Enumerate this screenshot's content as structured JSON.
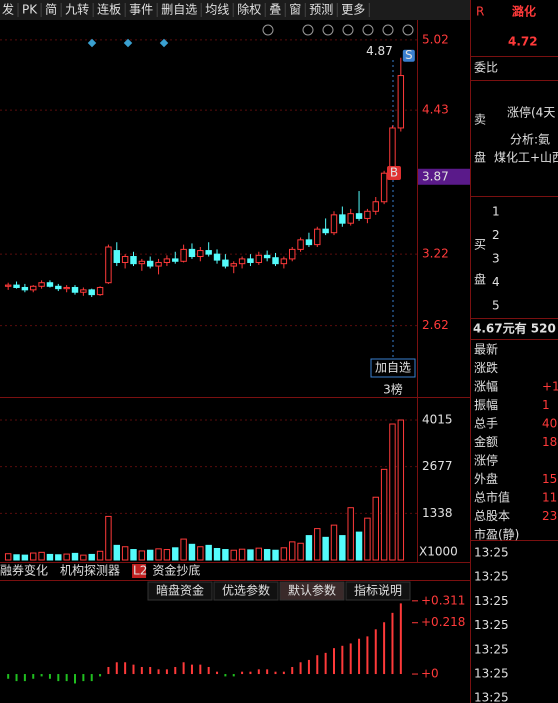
{
  "toolbar": {
    "items": [
      "发",
      "PK",
      "简",
      "九转",
      "连板",
      "事件",
      "删自选",
      "均线",
      "除权",
      "叠",
      "窗",
      "预测",
      "更多"
    ]
  },
  "chart_data": [
    {
      "type": "candlestick",
      "ohlc": [
        [
          2.95,
          2.98,
          2.92,
          2.96
        ],
        [
          2.96,
          2.99,
          2.93,
          2.94
        ],
        [
          2.94,
          2.97,
          2.9,
          2.92
        ],
        [
          2.92,
          2.96,
          2.9,
          2.95
        ],
        [
          2.95,
          3.0,
          2.93,
          2.98
        ],
        [
          2.98,
          3.0,
          2.94,
          2.95
        ],
        [
          2.95,
          2.97,
          2.91,
          2.93
        ],
        [
          2.93,
          2.96,
          2.9,
          2.94
        ],
        [
          2.94,
          2.96,
          2.88,
          2.9
        ],
        [
          2.9,
          2.94,
          2.87,
          2.92
        ],
        [
          2.92,
          2.93,
          2.86,
          2.88
        ],
        [
          2.88,
          2.95,
          2.87,
          2.94
        ],
        [
          2.98,
          3.3,
          2.97,
          3.28
        ],
        [
          3.25,
          3.32,
          3.12,
          3.15
        ],
        [
          3.15,
          3.22,
          3.1,
          3.2
        ],
        [
          3.2,
          3.24,
          3.12,
          3.14
        ],
        [
          3.14,
          3.18,
          3.08,
          3.16
        ],
        [
          3.16,
          3.2,
          3.1,
          3.12
        ],
        [
          3.12,
          3.18,
          3.05,
          3.15
        ],
        [
          3.15,
          3.21,
          3.12,
          3.18
        ],
        [
          3.18,
          3.24,
          3.14,
          3.16
        ],
        [
          3.16,
          3.3,
          3.15,
          3.26
        ],
        [
          3.26,
          3.31,
          3.18,
          3.2
        ],
        [
          3.2,
          3.28,
          3.16,
          3.25
        ],
        [
          3.25,
          3.32,
          3.2,
          3.22
        ],
        [
          3.22,
          3.26,
          3.14,
          3.17
        ],
        [
          3.17,
          3.22,
          3.1,
          3.12
        ],
        [
          3.12,
          3.16,
          3.06,
          3.14
        ],
        [
          3.14,
          3.2,
          3.1,
          3.18
        ],
        [
          3.18,
          3.22,
          3.12,
          3.15
        ],
        [
          3.15,
          3.24,
          3.13,
          3.21
        ],
        [
          3.21,
          3.25,
          3.16,
          3.19
        ],
        [
          3.19,
          3.23,
          3.12,
          3.14
        ],
        [
          3.14,
          3.2,
          3.1,
          3.18
        ],
        [
          3.18,
          3.28,
          3.16,
          3.26
        ],
        [
          3.26,
          3.36,
          3.24,
          3.34
        ],
        [
          3.34,
          3.4,
          3.28,
          3.3
        ],
        [
          3.3,
          3.45,
          3.28,
          3.43
        ],
        [
          3.43,
          3.52,
          3.38,
          3.4
        ],
        [
          3.4,
          3.58,
          3.38,
          3.55
        ],
        [
          3.55,
          3.62,
          3.45,
          3.48
        ],
        [
          3.48,
          3.6,
          3.46,
          3.56
        ],
        [
          3.56,
          3.75,
          3.5,
          3.52
        ],
        [
          3.52,
          3.6,
          3.48,
          3.58
        ],
        [
          3.58,
          3.7,
          3.55,
          3.66
        ],
        [
          3.66,
          3.92,
          3.64,
          3.9
        ],
        [
          3.9,
          4.3,
          3.88,
          4.28
        ],
        [
          4.28,
          4.87,
          4.25,
          4.72
        ]
      ],
      "ylim": [
        2.02,
        5.17
      ],
      "yticks": [
        5.02,
        4.43,
        3.22,
        2.62
      ],
      "cursor_price": 3.87,
      "annotations": {
        "high": "4.87",
        "sell": "S",
        "buy": "B",
        "add": "加自选",
        "rank": "3榜"
      }
    },
    {
      "type": "bar",
      "values": [
        180,
        150,
        140,
        200,
        220,
        160,
        150,
        170,
        190,
        140,
        160,
        250,
        1250,
        420,
        380,
        300,
        260,
        280,
        320,
        300,
        350,
        600,
        450,
        380,
        420,
        330,
        300,
        280,
        310,
        290,
        340,
        300,
        280,
        350,
        520,
        480,
        700,
        900,
        650,
        1000,
        700,
        1500,
        800,
        1200,
        1800,
        2600,
        3900,
        4015
      ],
      "ylim": [
        0,
        4646
      ],
      "yticks": [
        4015,
        2677,
        1338
      ],
      "unit": "X1000"
    },
    {
      "type": "bar",
      "values": [
        -0.02,
        -0.03,
        -0.03,
        -0.02,
        -0.01,
        -0.02,
        -0.03,
        -0.03,
        -0.04,
        -0.03,
        -0.03,
        -0.01,
        0.03,
        0.05,
        0.05,
        0.04,
        0.03,
        0.03,
        0.02,
        0.02,
        0.03,
        0.05,
        0.04,
        0.04,
        0.03,
        0.01,
        -0.01,
        -0.01,
        0.01,
        0.01,
        0.02,
        0.02,
        0.01,
        0.01,
        0.03,
        0.05,
        0.06,
        0.08,
        0.09,
        0.11,
        0.12,
        0.13,
        0.15,
        0.16,
        0.19,
        0.22,
        0.26,
        0.3
      ],
      "ylim": [
        -0.123,
        0.391
      ],
      "yticks": [
        {
          "value": 0.311,
          "label": "+0.311"
        },
        {
          "value": 0.218,
          "label": "+0.218"
        },
        {
          "value": 0,
          "label": "+0"
        }
      ]
    }
  ],
  "tabs": [
    "融券变化",
    "机构探测器",
    "L2",
    "资金抄底"
  ],
  "buttons": [
    "暗盘资金",
    "优选参数",
    "默认参数",
    "指标说明"
  ],
  "quote": {
    "flag": "R",
    "name": "潞化",
    "price": "4.72",
    "order_ratio": "委比",
    "sell": [
      "卖",
      "盘"
    ],
    "buy": [
      "买",
      "盘"
    ],
    "notes": [
      "涨停(4天",
      "分析:氨",
      "煤化工+山西"
    ],
    "levels": [
      "1",
      "2",
      "3",
      "4",
      "5"
    ],
    "trade": "4.67元有 520",
    "fields": [
      [
        "最新",
        ""
      ],
      [
        "涨跌",
        ""
      ],
      [
        "涨幅",
        "+1"
      ],
      [
        "振幅",
        "1"
      ],
      [
        "总手",
        "40"
      ],
      [
        "金额",
        "18"
      ],
      [
        "涨停",
        ""
      ],
      [
        "外盘",
        "15"
      ],
      [
        "总市值",
        "11"
      ],
      [
        "总股本",
        "23"
      ],
      [
        "市盈(静)",
        ""
      ]
    ],
    "times": [
      "13:25",
      "13:25",
      "13:25",
      "13:25",
      "13:25",
      "13:25",
      "13:25"
    ]
  }
}
